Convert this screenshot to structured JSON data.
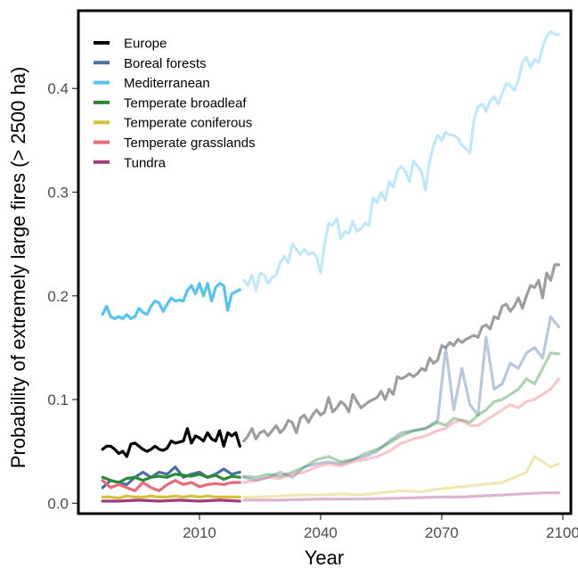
{
  "chart_data": {
    "type": "line",
    "title": "",
    "xlabel": "Year",
    "ylabel": "Probability of extremely large fires (> 2500 ha)",
    "xlim": [
      1980,
      2102
    ],
    "ylim": [
      -0.01,
      0.475
    ],
    "x_ticks": [
      2010,
      2040,
      2070,
      2100
    ],
    "x_tick_labels": [
      "2010",
      "2040",
      "2070",
      "2100"
    ],
    "y_ticks": [
      0.0,
      0.1,
      0.2,
      0.3,
      0.4
    ],
    "y_tick_labels": [
      "0.0",
      "0.1",
      "0.2",
      "0.3",
      "0.4"
    ],
    "grid": false,
    "legend_position": "top-left",
    "observed_period": [
      1986,
      2020
    ],
    "projected_period": [
      2021,
      2099
    ],
    "series": [
      {
        "name": "Europe",
        "color": "#000000",
        "observed": {
          "x": [
            1986,
            1987,
            1988,
            1989,
            1990,
            1991,
            1992,
            1993,
            1994,
            1995,
            1996,
            1997,
            1998,
            1999,
            2000,
            2001,
            2002,
            2003,
            2004,
            2005,
            2006,
            2007,
            2008,
            2009,
            2010,
            2011,
            2012,
            2013,
            2014,
            2015,
            2016,
            2017,
            2018,
            2019,
            2020
          ],
          "y": [
            0.052,
            0.055,
            0.055,
            0.052,
            0.048,
            0.05,
            0.045,
            0.057,
            0.058,
            0.055,
            0.052,
            0.05,
            0.052,
            0.055,
            0.052,
            0.051,
            0.053,
            0.06,
            0.058,
            0.059,
            0.06,
            0.072,
            0.058,
            0.065,
            0.063,
            0.06,
            0.068,
            0.062,
            0.06,
            0.07,
            0.055,
            0.068,
            0.065,
            0.068,
            0.055
          ]
        },
        "projected": {
          "x": [
            2021,
            2022,
            2023,
            2024,
            2025,
            2026,
            2027,
            2028,
            2029,
            2030,
            2031,
            2032,
            2033,
            2034,
            2035,
            2036,
            2037,
            2038,
            2039,
            2040,
            2041,
            2042,
            2043,
            2044,
            2045,
            2046,
            2047,
            2048,
            2049,
            2050,
            2051,
            2052,
            2053,
            2054,
            2055,
            2056,
            2057,
            2058,
            2059,
            2060,
            2061,
            2062,
            2063,
            2064,
            2065,
            2066,
            2067,
            2068,
            2069,
            2070,
            2071,
            2072,
            2073,
            2074,
            2075,
            2076,
            2077,
            2078,
            2079,
            2080,
            2081,
            2082,
            2083,
            2084,
            2085,
            2086,
            2087,
            2088,
            2089,
            2090,
            2091,
            2092,
            2093,
            2094,
            2095,
            2096,
            2097,
            2098,
            2099
          ],
          "y": [
            0.06,
            0.065,
            0.072,
            0.062,
            0.068,
            0.07,
            0.065,
            0.07,
            0.075,
            0.068,
            0.072,
            0.08,
            0.078,
            0.068,
            0.082,
            0.085,
            0.078,
            0.085,
            0.09,
            0.085,
            0.088,
            0.102,
            0.088,
            0.092,
            0.098,
            0.095,
            0.088,
            0.105,
            0.098,
            0.092,
            0.095,
            0.098,
            0.1,
            0.102,
            0.108,
            0.1,
            0.11,
            0.105,
            0.122,
            0.12,
            0.122,
            0.125,
            0.122,
            0.125,
            0.13,
            0.128,
            0.14,
            0.135,
            0.138,
            0.152,
            0.15,
            0.155,
            0.152,
            0.158,
            0.155,
            0.158,
            0.16,
            0.162,
            0.16,
            0.17,
            0.172,
            0.168,
            0.18,
            0.178,
            0.19,
            0.192,
            0.185,
            0.19,
            0.198,
            0.188,
            0.2,
            0.21,
            0.208,
            0.215,
            0.198,
            0.222,
            0.215,
            0.23,
            0.23
          ]
        }
      },
      {
        "name": "Boreal forests",
        "color": "#4a6fa1",
        "observed": {
          "x": [
            1986,
            1988,
            1990,
            1992,
            1994,
            1996,
            1998,
            2000,
            2002,
            2004,
            2006,
            2008,
            2010,
            2012,
            2014,
            2016,
            2018,
            2020
          ],
          "y": [
            0.015,
            0.022,
            0.02,
            0.018,
            0.025,
            0.03,
            0.025,
            0.03,
            0.028,
            0.035,
            0.025,
            0.028,
            0.03,
            0.025,
            0.028,
            0.033,
            0.028,
            0.03
          ]
        },
        "projected": {
          "x": [
            2021,
            2024,
            2027,
            2030,
            2033,
            2036,
            2039,
            2042,
            2045,
            2048,
            2051,
            2054,
            2057,
            2060,
            2063,
            2066,
            2069,
            2071,
            2073,
            2075,
            2077,
            2079,
            2081,
            2083,
            2085,
            2087,
            2089,
            2091,
            2093,
            2095,
            2097,
            2099
          ],
          "y": [
            0.025,
            0.022,
            0.025,
            0.03,
            0.025,
            0.035,
            0.038,
            0.04,
            0.038,
            0.042,
            0.045,
            0.05,
            0.06,
            0.068,
            0.07,
            0.072,
            0.08,
            0.15,
            0.09,
            0.13,
            0.095,
            0.085,
            0.16,
            0.11,
            0.115,
            0.135,
            0.13,
            0.145,
            0.15,
            0.14,
            0.18,
            0.17
          ]
        }
      },
      {
        "name": "Mediterranean",
        "color": "#56c4ee",
        "observed": {
          "x": [
            1986,
            1987,
            1988,
            1989,
            1990,
            1991,
            1992,
            1993,
            1994,
            1995,
            1996,
            1997,
            1998,
            1999,
            2000,
            2001,
            2002,
            2003,
            2004,
            2005,
            2006,
            2007,
            2008,
            2009,
            2010,
            2011,
            2012,
            2013,
            2014,
            2015,
            2016,
            2017,
            2018,
            2019,
            2020
          ],
          "y": [
            0.182,
            0.19,
            0.18,
            0.178,
            0.18,
            0.178,
            0.182,
            0.178,
            0.18,
            0.188,
            0.184,
            0.182,
            0.19,
            0.195,
            0.193,
            0.185,
            0.192,
            0.198,
            0.195,
            0.196,
            0.195,
            0.205,
            0.21,
            0.202,
            0.212,
            0.2,
            0.212,
            0.195,
            0.208,
            0.212,
            0.21,
            0.186,
            0.202,
            0.204,
            0.206
          ]
        },
        "projected": {
          "x": [
            2021,
            2022,
            2023,
            2024,
            2025,
            2026,
            2027,
            2028,
            2029,
            2030,
            2031,
            2032,
            2033,
            2034,
            2035,
            2036,
            2037,
            2038,
            2039,
            2040,
            2041,
            2042,
            2043,
            2044,
            2045,
            2046,
            2047,
            2048,
            2049,
            2050,
            2051,
            2052,
            2053,
            2054,
            2055,
            2056,
            2057,
            2058,
            2059,
            2060,
            2061,
            2062,
            2063,
            2064,
            2065,
            2066,
            2067,
            2068,
            2069,
            2070,
            2071,
            2072,
            2073,
            2074,
            2075,
            2076,
            2077,
            2078,
            2079,
            2080,
            2081,
            2082,
            2083,
            2084,
            2085,
            2086,
            2087,
            2088,
            2089,
            2090,
            2091,
            2092,
            2093,
            2094,
            2095,
            2096,
            2097,
            2098,
            2099
          ],
          "y": [
            0.215,
            0.21,
            0.22,
            0.205,
            0.222,
            0.22,
            0.212,
            0.218,
            0.22,
            0.232,
            0.238,
            0.232,
            0.25,
            0.245,
            0.24,
            0.245,
            0.24,
            0.242,
            0.238,
            0.222,
            0.25,
            0.27,
            0.268,
            0.275,
            0.255,
            0.262,
            0.26,
            0.272,
            0.262,
            0.265,
            0.27,
            0.268,
            0.295,
            0.29,
            0.3,
            0.292,
            0.31,
            0.305,
            0.32,
            0.325,
            0.32,
            0.31,
            0.33,
            0.325,
            0.32,
            0.302,
            0.33,
            0.345,
            0.355,
            0.35,
            0.358,
            0.355,
            0.355,
            0.352,
            0.345,
            0.342,
            0.338,
            0.37,
            0.382,
            0.385,
            0.378,
            0.388,
            0.392,
            0.385,
            0.395,
            0.405,
            0.403,
            0.398,
            0.408,
            0.425,
            0.43,
            0.42,
            0.428,
            0.425,
            0.44,
            0.45,
            0.455,
            0.452,
            0.452
          ]
        }
      },
      {
        "name": "Temperate broadleaf",
        "color": "#2a8a34",
        "observed": {
          "x": [
            1986,
            1988,
            1990,
            1992,
            1994,
            1996,
            1998,
            2000,
            2002,
            2004,
            2006,
            2008,
            2010,
            2012,
            2014,
            2016,
            2018,
            2020
          ],
          "y": [
            0.025,
            0.022,
            0.02,
            0.024,
            0.025,
            0.022,
            0.025,
            0.026,
            0.025,
            0.028,
            0.027,
            0.026,
            0.028,
            0.025,
            0.027,
            0.023,
            0.026,
            0.025
          ]
        },
        "projected": {
          "x": [
            2021,
            2024,
            2027,
            2030,
            2033,
            2036,
            2039,
            2042,
            2045,
            2048,
            2051,
            2054,
            2057,
            2060,
            2063,
            2066,
            2069,
            2071,
            2073,
            2075,
            2077,
            2079,
            2081,
            2083,
            2085,
            2087,
            2089,
            2091,
            2093,
            2095,
            2097,
            2099
          ],
          "y": [
            0.026,
            0.025,
            0.028,
            0.026,
            0.03,
            0.035,
            0.042,
            0.045,
            0.04,
            0.042,
            0.048,
            0.052,
            0.058,
            0.065,
            0.07,
            0.072,
            0.078,
            0.075,
            0.082,
            0.08,
            0.078,
            0.085,
            0.09,
            0.098,
            0.1,
            0.105,
            0.11,
            0.12,
            0.115,
            0.13,
            0.145,
            0.144
          ]
        }
      },
      {
        "name": "Temperate coniferous",
        "color": "#d6c23a",
        "observed": {
          "x": [
            1986,
            1988,
            1990,
            1992,
            1994,
            1996,
            1998,
            2000,
            2002,
            2004,
            2006,
            2008,
            2010,
            2012,
            2014,
            2016,
            2018,
            2020
          ],
          "y": [
            0.006,
            0.006,
            0.005,
            0.007,
            0.006,
            0.006,
            0.007,
            0.006,
            0.006,
            0.007,
            0.006,
            0.007,
            0.006,
            0.007,
            0.006,
            0.006,
            0.006,
            0.006
          ]
        },
        "projected": {
          "x": [
            2021,
            2025,
            2030,
            2035,
            2040,
            2045,
            2050,
            2055,
            2060,
            2065,
            2070,
            2075,
            2080,
            2085,
            2088,
            2091,
            2093,
            2095,
            2097,
            2099
          ],
          "y": [
            0.006,
            0.006,
            0.007,
            0.008,
            0.008,
            0.009,
            0.008,
            0.01,
            0.012,
            0.011,
            0.014,
            0.016,
            0.018,
            0.02,
            0.025,
            0.03,
            0.045,
            0.04,
            0.035,
            0.038
          ]
        }
      },
      {
        "name": "Temperate grasslands",
        "color": "#e96b7a",
        "observed": {
          "x": [
            1986,
            1988,
            1990,
            1992,
            1994,
            1996,
            1998,
            2000,
            2002,
            2004,
            2006,
            2008,
            2010,
            2012,
            2014,
            2016,
            2018,
            2020
          ],
          "y": [
            0.022,
            0.015,
            0.018,
            0.015,
            0.012,
            0.02,
            0.015,
            0.012,
            0.018,
            0.022,
            0.018,
            0.02,
            0.016,
            0.018,
            0.019,
            0.018,
            0.02,
            0.02
          ]
        },
        "projected": {
          "x": [
            2021,
            2024,
            2027,
            2030,
            2033,
            2036,
            2039,
            2042,
            2045,
            2048,
            2051,
            2054,
            2057,
            2060,
            2063,
            2066,
            2069,
            2071,
            2073,
            2075,
            2077,
            2079,
            2081,
            2083,
            2085,
            2087,
            2089,
            2091,
            2093,
            2095,
            2097,
            2099
          ],
          "y": [
            0.02,
            0.022,
            0.025,
            0.024,
            0.028,
            0.03,
            0.035,
            0.038,
            0.036,
            0.04,
            0.042,
            0.045,
            0.05,
            0.058,
            0.062,
            0.065,
            0.07,
            0.072,
            0.078,
            0.08,
            0.075,
            0.075,
            0.08,
            0.085,
            0.09,
            0.095,
            0.092,
            0.098,
            0.1,
            0.105,
            0.11,
            0.12
          ]
        }
      },
      {
        "name": "Tundra",
        "color": "#a23b7e",
        "observed": {
          "x": [
            1986,
            1990,
            1995,
            2000,
            2005,
            2010,
            2015,
            2020
          ],
          "y": [
            0.002,
            0.002,
            0.003,
            0.002,
            0.003,
            0.002,
            0.003,
            0.002
          ]
        },
        "projected": {
          "x": [
            2021,
            2030,
            2040,
            2050,
            2060,
            2070,
            2075,
            2080,
            2085,
            2090,
            2095,
            2099
          ],
          "y": [
            0.003,
            0.003,
            0.004,
            0.004,
            0.005,
            0.006,
            0.006,
            0.007,
            0.008,
            0.009,
            0.01,
            0.01
          ]
        }
      }
    ]
  }
}
